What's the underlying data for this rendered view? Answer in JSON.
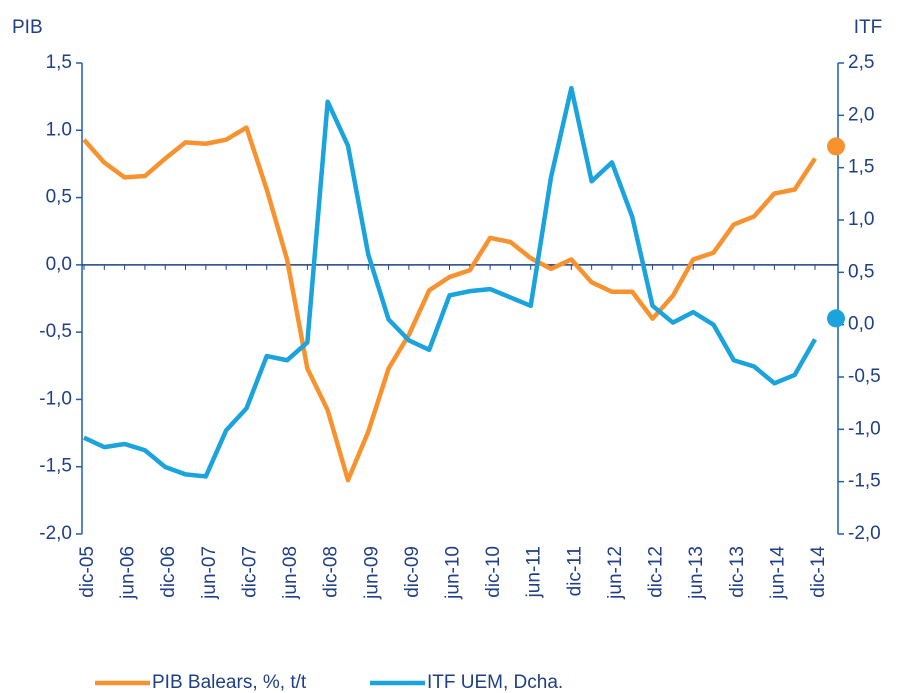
{
  "chart_data": {
    "type": "line",
    "y_axis_title": "PIB",
    "y2_axis_title": "ITF",
    "categories": [
      "dic-05",
      null,
      "jun-06",
      null,
      "dic-06",
      null,
      "jun-07",
      null,
      "dic-07",
      null,
      "jun-08",
      null,
      "dic-08",
      null,
      "jun-09",
      null,
      "dic-09",
      null,
      "jun-10",
      null,
      "dic-10",
      null,
      "jun-11",
      null,
      "dic-11",
      null,
      "jun-12",
      null,
      "dic-12",
      null,
      "jun-13",
      null,
      "dic-13",
      null,
      "jun-14",
      null,
      "dic-14"
    ],
    "ylim": [
      -2.0,
      1.5
    ],
    "yticks": [
      {
        "value": 1.5,
        "label": "1,5"
      },
      {
        "value": 1.0,
        "label": "1.0"
      },
      {
        "value": 0.5,
        "label": "0,5"
      },
      {
        "value": 0.0,
        "label": "0,0"
      },
      {
        "value": -0.5,
        "label": "-0,5"
      },
      {
        "value": -1.0,
        "label": "-1,0"
      },
      {
        "value": -1.5,
        "label": "-1,5"
      },
      {
        "value": -2.0,
        "label": "-2,0"
      }
    ],
    "y2lim": [
      -2.0,
      2.5
    ],
    "y2ticks": [
      {
        "value": 2.5,
        "label": "2,5"
      },
      {
        "value": 2.0,
        "label": "2,0"
      },
      {
        "value": 1.5,
        "label": "1,5"
      },
      {
        "value": 1.0,
        "label": "1,0"
      },
      {
        "value": 0.5,
        "label": "0,5"
      },
      {
        "value": 0.0,
        "label": "0,0"
      },
      {
        "value": -0.5,
        "label": "-0,5"
      },
      {
        "value": -1.0,
        "label": "-1,0"
      },
      {
        "value": -1.5,
        "label": "-1,5"
      },
      {
        "value": -2.0,
        "label": "-2,0"
      }
    ],
    "series": [
      {
        "name": "PIB Balears, %, t/t",
        "color": "#f7922e",
        "marker": 0.88,
        "values": [
          0.93,
          0.76,
          0.65,
          0.66,
          0.79,
          0.91,
          0.9,
          0.93,
          1.02,
          0.56,
          0.04,
          -0.77,
          -1.08,
          -1.6,
          -1.24,
          -0.77,
          -0.52,
          -0.19,
          -0.09,
          -0.04,
          0.2,
          0.17,
          0.05,
          -0.03,
          0.04,
          -0.13,
          -0.2,
          -0.2,
          -0.4,
          -0.23,
          0.04,
          0.09,
          0.3,
          0.36,
          0.53,
          0.56,
          0.79
        ]
      },
      {
        "name": "ITF UEM, Dcha.",
        "color": "#1aa3dc",
        "axis": "y2",
        "marker": 0.06,
        "values": [
          -1.08,
          -1.17,
          -1.14,
          -1.2,
          -1.36,
          -1.43,
          -1.45,
          -1.01,
          -0.8,
          -0.3,
          -0.34,
          -0.17,
          2.13,
          1.71,
          0.67,
          0.05,
          -0.15,
          -0.24,
          0.28,
          0.32,
          0.34,
          0.26,
          0.18,
          1.41,
          2.26,
          1.37,
          1.55,
          1.03,
          0.18,
          0.02,
          0.12,
          0.0,
          -0.34,
          -0.4,
          -0.56,
          -0.48,
          -0.14
        ]
      }
    ]
  }
}
